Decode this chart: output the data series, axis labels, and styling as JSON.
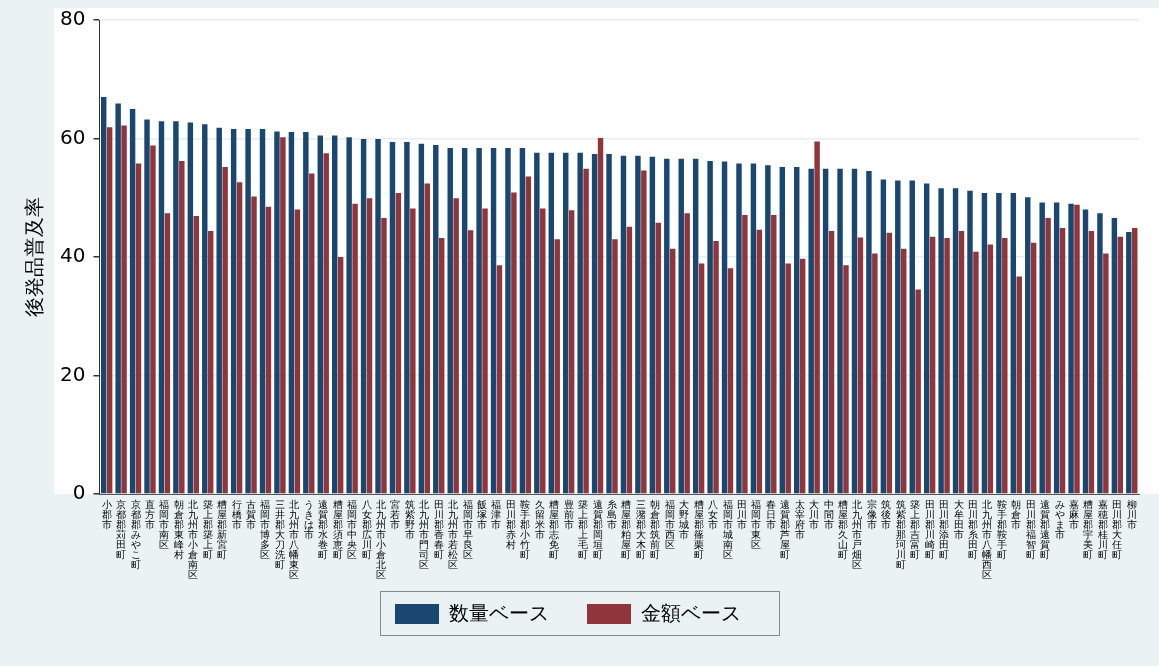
{
  "chart_data": {
    "type": "bar",
    "ylabel": "後発品普及率",
    "categories": [
      "小郡市",
      "京都郡苅田町",
      "京都郡みやこ町",
      "直方市",
      "福岡市南区",
      "朝倉郡東峰村",
      "北九州市小倉南区",
      "築上郡築上町",
      "糟屋郡新宮町",
      "行橋市",
      "古賀市",
      "福岡市博多区",
      "三井郡大刀洗町",
      "北九州市八幡東区",
      "うきは市",
      "遠賀郡水巻町",
      "糟屋郡須恵町",
      "福岡市中央区",
      "八女郡広川町",
      "北九州市小倉北区",
      "宮若市",
      "筑紫野市",
      "北九州市門司区",
      "田川郡香春町",
      "北九州市若松区",
      "福岡市早良区",
      "飯塚市",
      "福津市",
      "田川郡赤村",
      "鞍手郡小竹町",
      "久留米市",
      "糟屋郡志免町",
      "豊前市",
      "築上郡上毛町",
      "遠賀郡岡垣町",
      "糸島市",
      "糟屋郡粕屋町",
      "三潴郡大木町",
      "朝倉郡筑前町",
      "福岡市西区",
      "大野城市",
      "糟屋郡篠栗町",
      "八女市",
      "福岡市城南区",
      "田川市",
      "福岡市東区",
      "春日市",
      "遠賀郡芦屋町",
      "太宰府市",
      "大川市",
      "中間市",
      "糟屋郡久山町",
      "北九州市戸畑区",
      "宗像市",
      "筑後市",
      "筑紫郡那珂川町",
      "築上郡吉富町",
      "田川郡川崎町",
      "田川郡添田町",
      "大牟田市",
      "田川郡糸田町",
      "北九州市八幡西区",
      "鞍手郡鞍手町",
      "朝倉市",
      "田川郡福智町",
      "遠賀郡遠賀町",
      "みやま市",
      "嘉麻市",
      "糟屋郡宇美町",
      "嘉穂郡桂川町",
      "田川郡大任町",
      "柳川市"
    ],
    "series": [
      {
        "name": "数量ベース",
        "color": "#1a476f",
        "values": [
          67.0,
          65.9,
          65.0,
          63.2,
          62.9,
          62.9,
          62.7,
          62.4,
          61.8,
          61.6,
          61.6,
          61.6,
          61.2,
          61.1,
          61.1,
          60.5,
          60.5,
          60.2,
          59.9,
          59.9,
          59.4,
          59.4,
          59.1,
          58.9,
          58.4,
          58.4,
          58.4,
          58.4,
          58.4,
          58.4,
          57.6,
          57.6,
          57.6,
          57.6,
          57.4,
          57.4,
          57.1,
          57.1,
          56.9,
          56.6,
          56.6,
          56.6,
          56.2,
          56.1,
          55.8,
          55.8,
          55.5,
          55.2,
          55.2,
          54.9,
          54.9,
          54.9,
          54.9,
          54.5,
          53.1,
          52.9,
          52.9,
          52.4,
          51.6,
          51.6,
          51.2,
          50.8,
          50.8,
          50.8,
          50.1,
          49.2,
          49.2,
          49.0,
          48.0,
          47.4,
          46.6,
          44.2
        ]
      },
      {
        "name": "金額ベース",
        "color": "#90353b",
        "values": [
          61.9,
          62.2,
          55.8,
          58.8,
          47.4,
          56.2,
          46.9,
          44.4,
          55.2,
          52.6,
          50.2,
          48.5,
          60.2,
          48.0,
          54.1,
          57.5,
          40.0,
          49.0,
          49.9,
          46.6,
          50.8,
          48.2,
          52.4,
          43.2,
          49.9,
          44.5,
          48.2,
          38.6,
          50.9,
          53.6,
          48.2,
          43.0,
          47.9,
          54.9,
          60.1,
          43.0,
          45.1,
          54.6,
          45.8,
          41.4,
          47.4,
          38.9,
          42.7,
          38.1,
          47.1,
          44.6,
          47.1,
          38.9,
          39.7,
          59.5,
          44.4,
          38.6,
          43.3,
          40.6,
          44.1,
          41.4,
          34.5,
          43.4,
          43.2,
          44.4,
          40.9,
          42.1,
          43.2,
          36.7,
          42.4,
          46.6,
          44.9,
          48.8,
          44.4,
          40.6,
          43.4,
          44.9
        ]
      }
    ],
    "ylim": [
      0,
      80
    ],
    "yticks": [
      0,
      20,
      40,
      60,
      80
    ],
    "grid": "y",
    "legend": "bottom"
  }
}
